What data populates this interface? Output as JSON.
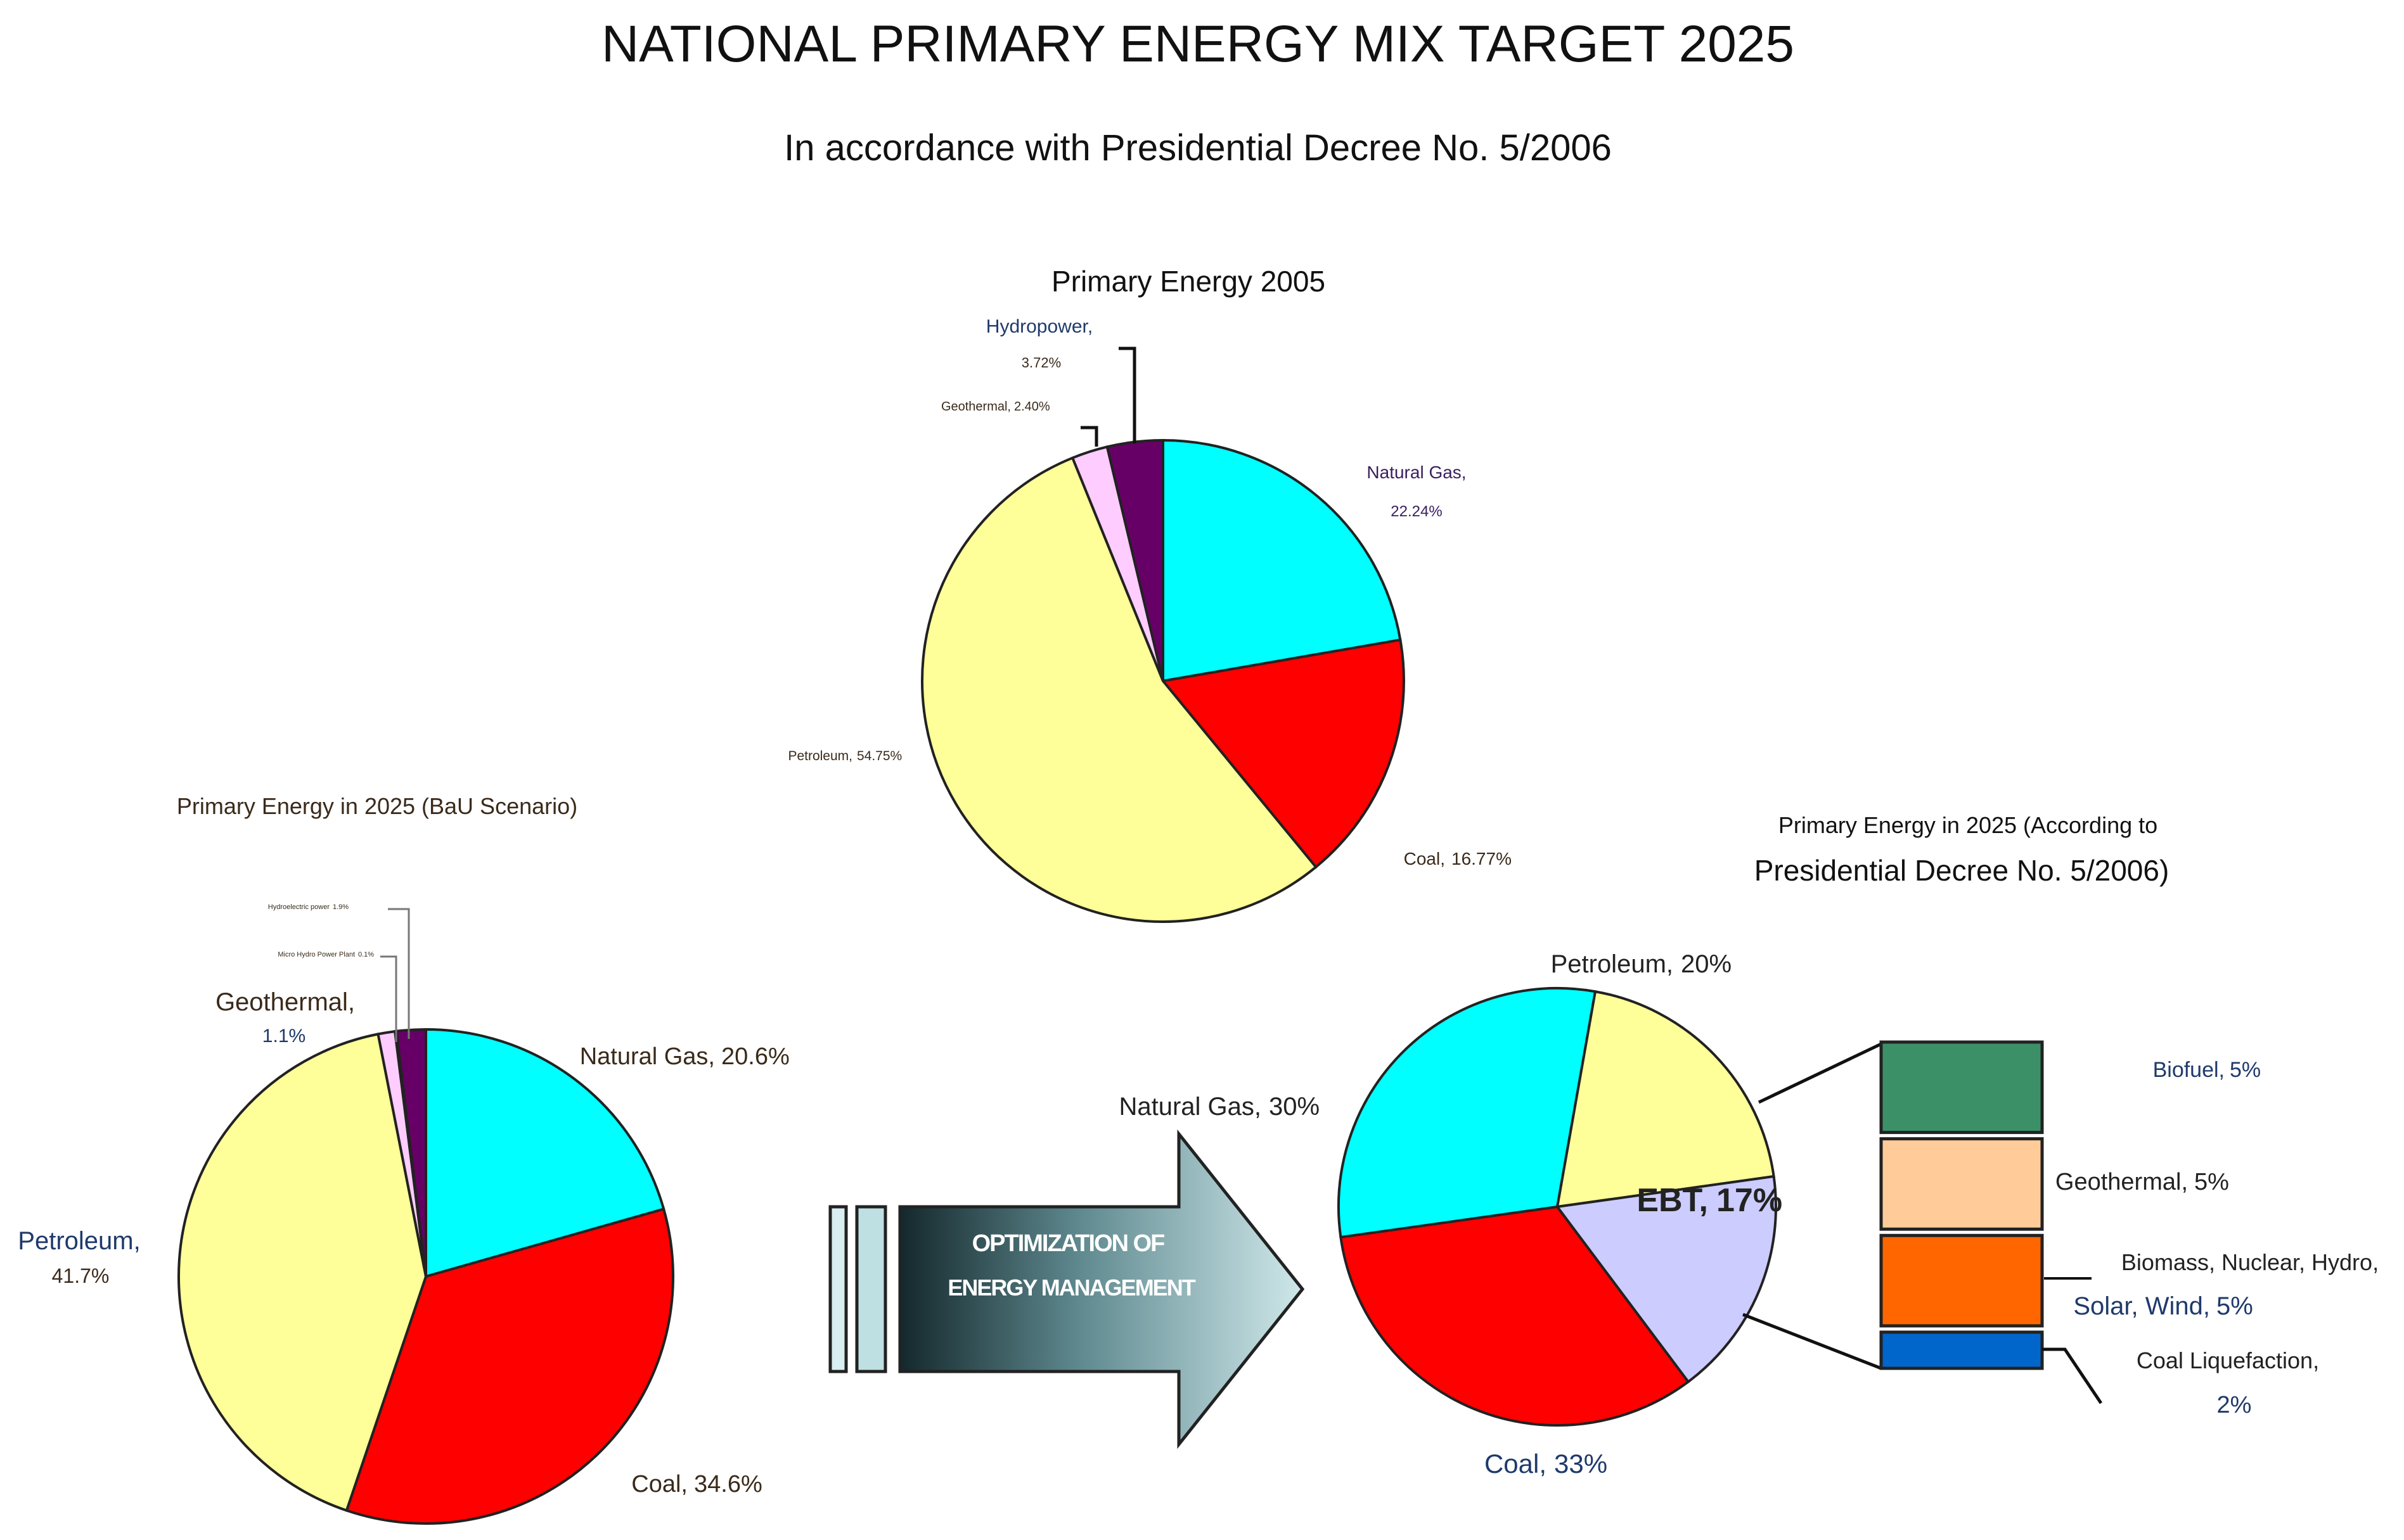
{
  "title": "NATIONAL PRIMARY ENERGY MIX TARGET 2025",
  "subtitle": "In accordance with Presidential Decree No. 5/2006",
  "arrow": {
    "line1": "OPTIMIZATION OF",
    "line2": "ENERGY MANAGEMENT"
  },
  "chart_data": [
    {
      "type": "pie",
      "title": "Primary Energy 2005",
      "slices": [
        {
          "label": "Natural Gas,",
          "value_label": "22.24%",
          "value": 22.24,
          "color": "#00FFFF"
        },
        {
          "label": "Coal,",
          "value_label": "16.77%",
          "value": 16.77,
          "color": "#FF0000"
        },
        {
          "label": "Petroleum,",
          "value_label": "54.75%",
          "value": 54.75,
          "color": "#FFFF99"
        },
        {
          "label": "Geothermal,",
          "value_label": "2.40%",
          "value": 2.4,
          "color": "#FFCCFF"
        },
        {
          "label": "Hydropower,",
          "value_label": "3.72%",
          "value": 3.72,
          "color": "#660066"
        }
      ]
    },
    {
      "type": "pie",
      "title": "Primary Energy in 2025 (BaU Scenario)",
      "slices": [
        {
          "label": "Natural Gas,",
          "value_label": "20.6%",
          "value": 20.6,
          "color": "#00FFFF"
        },
        {
          "label": "Coal,",
          "value_label": "34.6%",
          "value": 34.6,
          "color": "#FF0000"
        },
        {
          "label": "Petroleum,",
          "value_label": "41.7%",
          "value": 41.7,
          "color": "#FFFF99"
        },
        {
          "label": "Geothermal,",
          "value_label": "1.1%",
          "value": 1.1,
          "color": "#FFCCFF"
        },
        {
          "label": "Micro Hydro Power Plant",
          "value_label": "0.1%",
          "value": 0.1,
          "color": "#FFFFFF"
        },
        {
          "label": "Hydroelectric power",
          "value_label": "1.9%",
          "value": 1.9,
          "color": "#660066"
        }
      ]
    },
    {
      "type": "pie",
      "title_line1": "Primary Energy in 2025 (According to",
      "title_line2": "Presidential Decree No. 5/2006)",
      "slices": [
        {
          "label": "Petroleum,",
          "value_label": "20%",
          "value": 20,
          "color": "#FFFF99"
        },
        {
          "label": "EBT,",
          "value_label": "17%",
          "value": 17,
          "color": "#CCCCFF"
        },
        {
          "label": "Coal,",
          "value_label": "33%",
          "value": 33,
          "color": "#FF0000"
        },
        {
          "label": "Natural Gas,",
          "value_label": "30%",
          "value": 30,
          "color": "#00FFFF"
        }
      ],
      "breakdown": {
        "type": "stacked-bar",
        "of": "EBT",
        "segments": [
          {
            "label": "Biofuel,",
            "value_label": "5%",
            "value": 5,
            "color": "#3C9068"
          },
          {
            "label": "Geothermal,",
            "value_label": "5%",
            "value": 5,
            "color": "#FFCC99"
          },
          {
            "label_line1": "Biomass, Nuclear, Hydro,",
            "label_line2": "Solar, Wind,",
            "value_label": "5%",
            "value": 5,
            "color": "#FF6600"
          },
          {
            "label": "Coal Liquefaction,",
            "value_label": "2%",
            "value": 2,
            "color": "#0066CC"
          }
        ]
      }
    }
  ]
}
